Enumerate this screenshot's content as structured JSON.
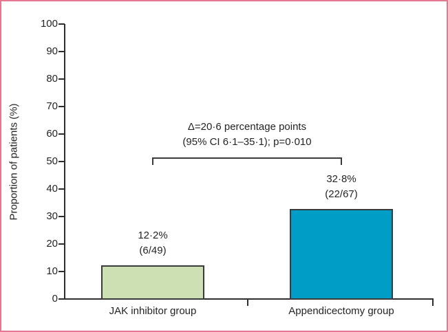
{
  "figure": {
    "frame_color": "#e27892",
    "axis_color": "#2d2d2d",
    "text_color": "#262323",
    "bar_border_color": "#3a3a3a"
  },
  "chart_data": {
    "type": "bar",
    "title": "",
    "xlabel": "",
    "ylabel": "Proportion of patients (%)",
    "ylim": [
      0,
      100
    ],
    "ytick_step": 10,
    "ytick_labels": [
      "0",
      "10",
      "20",
      "30",
      "40",
      "50",
      "60",
      "70",
      "80",
      "90",
      "100"
    ],
    "categories": [
      "JAK inhibitor group",
      "Appendicectomy group"
    ],
    "values": [
      12.2,
      32.8
    ],
    "value_labels": [
      [
        "12·2%",
        "(6/49)"
      ],
      [
        "32·8%",
        "(22/67)"
      ]
    ],
    "bar_colors": [
      "#cce0b4",
      "#009ec6"
    ],
    "grid": "off",
    "legend": "none",
    "annotation": {
      "line1": "Δ=20·6 percentage points",
      "line2": "(95% CI 6·1–35·1); p=0·010"
    }
  }
}
